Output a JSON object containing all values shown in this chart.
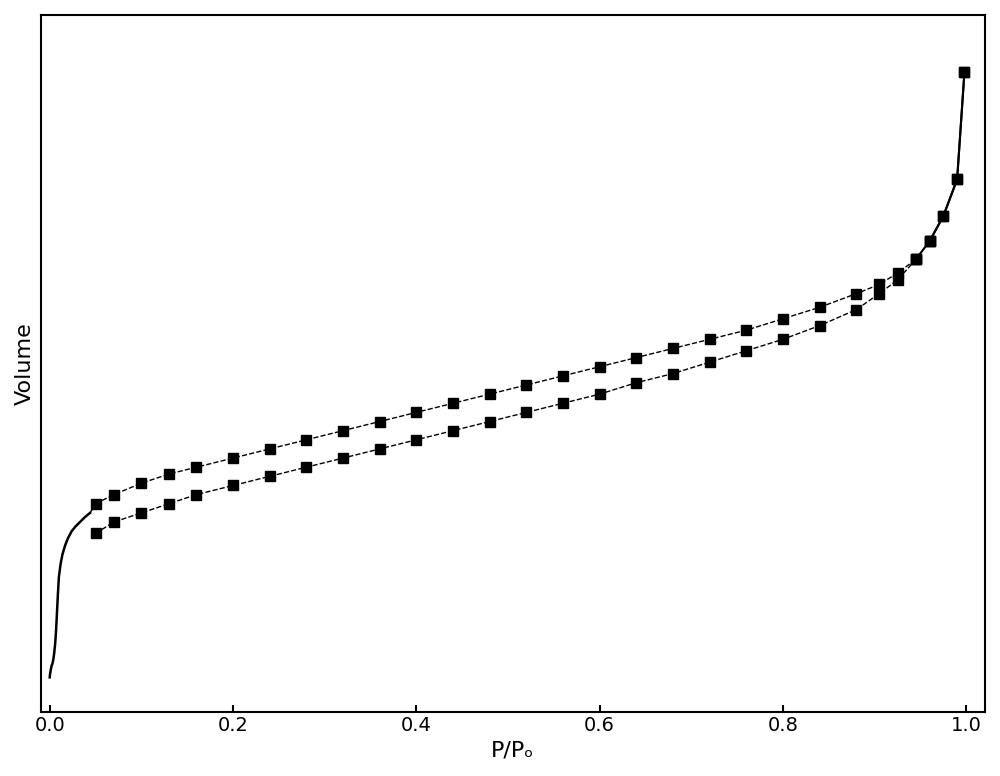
{
  "xlabel": "P/Pₒ",
  "ylabel": "Volume",
  "background_color": "#ffffff",
  "line_color": "#000000",
  "marker": "s",
  "markersize": 7,
  "xlabel_fontsize": 16,
  "ylabel_fontsize": 16,
  "tick_fontsize": 14,
  "adsorption_x": [
    0.001,
    0.002,
    0.003,
    0.004,
    0.005,
    0.006,
    0.007,
    0.008,
    0.009,
    0.01,
    0.012,
    0.014,
    0.017,
    0.02,
    0.024,
    0.028,
    0.033,
    0.038,
    0.044,
    0.05,
    0.07,
    0.1,
    0.13,
    0.16,
    0.2,
    0.24,
    0.28,
    0.32,
    0.36,
    0.4,
    0.44,
    0.48,
    0.52,
    0.56,
    0.6,
    0.64,
    0.68,
    0.72,
    0.76,
    0.8,
    0.84,
    0.88,
    0.905,
    0.925,
    0.945,
    0.96,
    0.975,
    0.99,
    0.998
  ],
  "adsorption_y": [
    5,
    6,
    7,
    9,
    12,
    17,
    24,
    32,
    40,
    46,
    52,
    56,
    60,
    63,
    66,
    68,
    70,
    72,
    73,
    76,
    80,
    85,
    89,
    92,
    96,
    100,
    104,
    108,
    112,
    116,
    120,
    124,
    128,
    132,
    136,
    140,
    144,
    148,
    152,
    157,
    162,
    168,
    172,
    177,
    183,
    191,
    202,
    218,
    265
  ],
  "desorption_x": [
    0.998,
    0.99,
    0.975,
    0.96,
    0.945,
    0.925,
    0.905,
    0.88,
    0.84,
    0.8,
    0.76,
    0.72,
    0.68,
    0.64,
    0.6,
    0.56,
    0.52,
    0.48,
    0.44,
    0.4,
    0.36,
    0.32,
    0.28,
    0.24,
    0.2,
    0.16,
    0.13,
    0.1,
    0.07,
    0.05
  ],
  "desorption_y": [
    265,
    218,
    202,
    191,
    183,
    174,
    168,
    161,
    154,
    148,
    143,
    138,
    133,
    129,
    124,
    120,
    116,
    112,
    108,
    104,
    100,
    96,
    92,
    88,
    84,
    80,
    76,
    72,
    68,
    63
  ],
  "micropore_dense_x": [
    0.0,
    0.0002,
    0.0004,
    0.0006,
    0.0008,
    0.001,
    0.0015,
    0.002,
    0.003,
    0.004,
    0.005,
    0.006,
    0.007,
    0.008,
    0.009,
    0.01,
    0.012,
    0.014,
    0.017,
    0.02,
    0.024,
    0.028,
    0.033,
    0.038,
    0.044
  ],
  "micropore_dense_y": [
    0,
    1,
    1.5,
    2,
    2.5,
    3,
    4,
    5,
    6,
    8,
    11,
    15,
    21,
    29,
    37,
    44,
    50,
    54,
    58,
    61,
    64,
    66,
    68,
    70,
    72
  ],
  "ylim": [
    -15,
    290
  ],
  "xlim": [
    -0.01,
    1.02
  ]
}
